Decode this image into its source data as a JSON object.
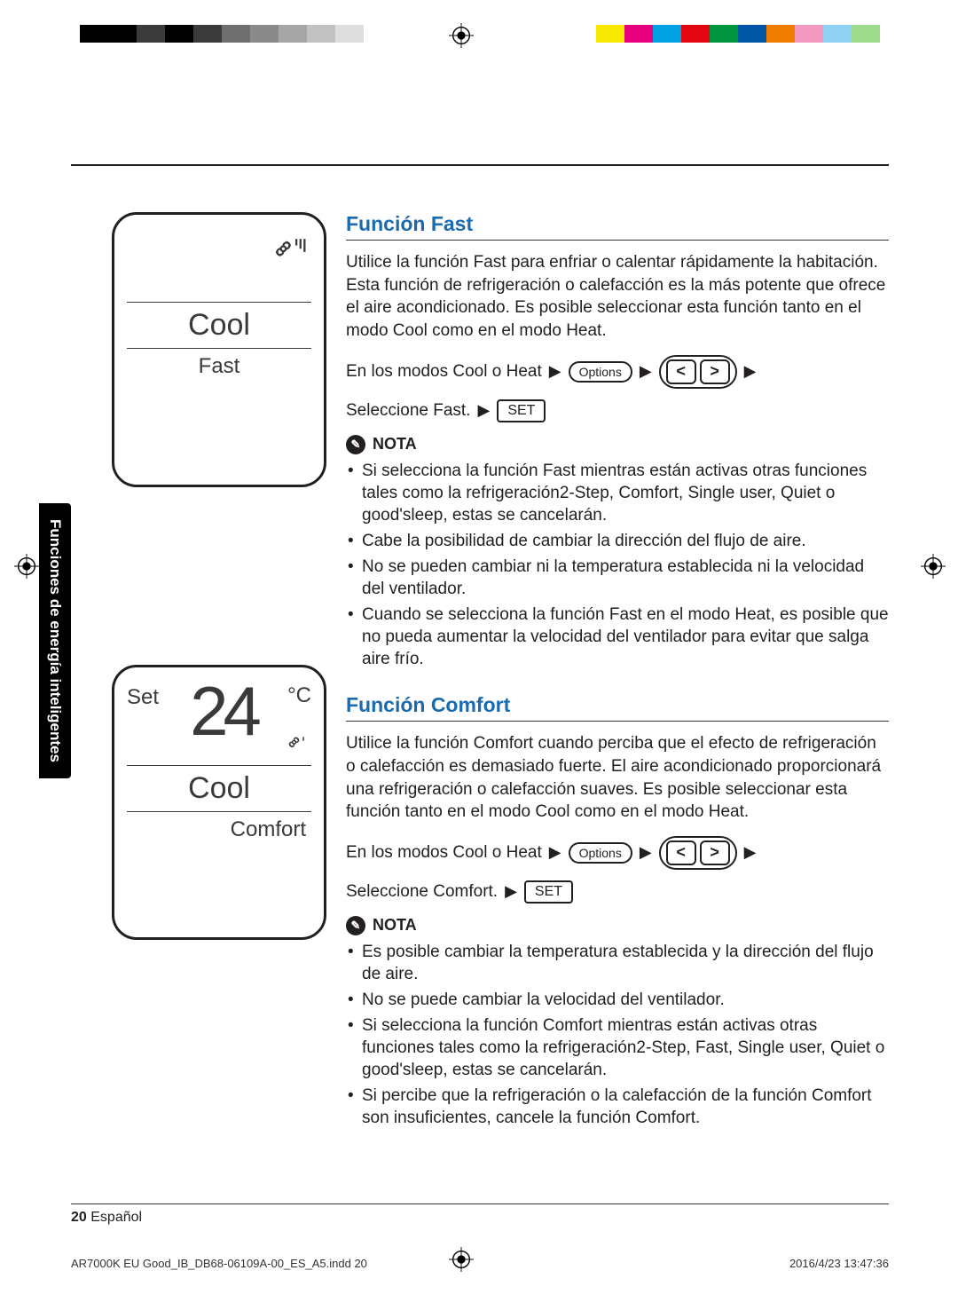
{
  "colorBars": {
    "left": [
      "#000000",
      "#000000",
      "#3b3b3b",
      "#000000",
      "#3b3b3b",
      "#6f6f6f",
      "#8a8a8a",
      "#a6a6a6",
      "#c2c2c2",
      "#dedede"
    ],
    "right": [
      "#f6e800",
      "#e6007e",
      "#00a0e3",
      "#e30613",
      "#009640",
      "#0055a4",
      "#ef7d00",
      "#f39abf",
      "#8fd2f2",
      "#9fd98b"
    ]
  },
  "sideTab": "Funciones de energía inteligentes",
  "display1": {
    "mode": "Cool",
    "sub": "Fast"
  },
  "display2": {
    "set": "Set",
    "temp": "24",
    "unit": "°C",
    "mode": "Cool",
    "sub": "Comfort"
  },
  "fast": {
    "title": "Función Fast",
    "para": "Utilice la función Fast para enfriar o calentar rápidamente la habitación. Esta función de refrigeración o calefacción es la más potente que ofrece el aire acondicionado. Es posible seleccionar esta función tanto en el modo Cool como en el modo Heat.",
    "step1": "En los modos Cool o Heat",
    "options": "Options",
    "step2": "Seleccione Fast.",
    "set": "SET",
    "notaLabel": "NOTA",
    "notes": [
      "Si selecciona la función Fast mientras están activas otras funciones tales como la refrigeración2-Step, Comfort, Single user, Quiet o good'sleep, estas se cancelarán.",
      "Cabe la posibilidad de cambiar la dirección del flujo de aire.",
      "No se pueden cambiar ni la temperatura establecida ni la velocidad del ventilador.",
      "Cuando se selecciona la función Fast en el modo Heat, es posible que no pueda aumentar la velocidad del ventilador para evitar que salga aire frío."
    ]
  },
  "comfort": {
    "title": "Función Comfort",
    "para": "Utilice la función Comfort cuando perciba que el efecto de refrigeración o calefacción es demasiado fuerte. El aire acondicionado proporcionará una refrigeración o calefacción suaves. Es posible seleccionar esta función tanto en el modo Cool como en el modo Heat.",
    "step1": "En los modos Cool o Heat",
    "options": "Options",
    "step2": "Seleccione Comfort.",
    "set": "SET",
    "notaLabel": "NOTA",
    "notes": [
      "Es posible cambiar la temperatura establecida y la dirección del flujo de aire.",
      "No se puede cambiar la velocidad del ventilador.",
      "Si selecciona la función Comfort mientras están activas otras funciones tales como la refrigeración2-Step, Fast, Single user, Quiet o good'sleep, estas se cancelarán.",
      "Si percibe que la refrigeración o la calefacción de la función Comfort son insuficientes, cancele la función Comfort."
    ]
  },
  "footer": {
    "page": "20",
    "lang": "Español"
  },
  "indd": {
    "file": "AR7000K EU Good_IB_DB68-06109A-00_ES_A5.indd   20",
    "ts": "2016/4/23   13:47:36"
  }
}
